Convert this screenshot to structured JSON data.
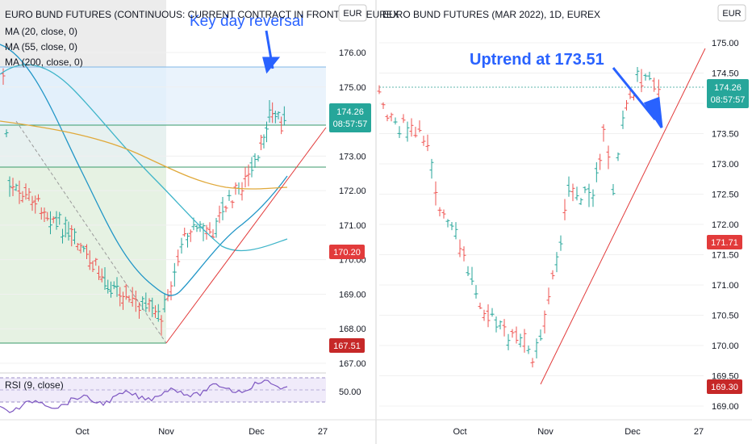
{
  "colors": {
    "up": "#26a69a",
    "down": "#ef5350",
    "ma20": "#2196c7",
    "ma55": "#3fb5c9",
    "ma200": "#e0a93a",
    "trend": "#e23b3b",
    "arrow": "#2962ff",
    "rsi": "#7e57c2",
    "badge_green": "#26a69a",
    "badge_red": "#e23b3b",
    "badge_darkred": "#c62828"
  },
  "left_panel": {
    "title": "EURO BUND FUTURES (CONTINUOUS: CURRENT CONTRACT IN FRONT), 1D, EUREX",
    "currency": "EUR",
    "legend": [
      "MA (20, close, 0)",
      "MA (55, close, 0)",
      "MA (200, close, 0)"
    ],
    "annotation": "Key day reversal",
    "rsi_label": "RSI (9, close)",
    "rsi_tick": "50.00",
    "price_badge": {
      "value": "174.26",
      "countdown": "08:57:57"
    },
    "level_badges": [
      "170.20",
      "167.51"
    ]
  },
  "right_panel": {
    "title": "EURO BUND FUTURES (MAR 2022), 1D, EUREX",
    "currency": "EUR",
    "annotation": "Uptrend at 173.51",
    "price_badge": {
      "value": "174.26",
      "countdown": "08:57:57"
    },
    "level_badges": [
      "171.71",
      "169.30"
    ]
  },
  "chart_data": [
    {
      "type": "bar",
      "title": "EURO BUND FUTURES (CONTINUOUS: CURRENT CONTRACT IN FRONT), 1D, EUREX",
      "y_ticks": [
        "176.00",
        "175.00",
        "174.00",
        "173.00",
        "172.00",
        "171.00",
        "170.00",
        "169.00",
        "168.00",
        "167.00"
      ],
      "x_ticks": [
        "Oct",
        "Nov",
        "Dec",
        "27"
      ],
      "ylim": [
        166.7,
        177.2
      ],
      "series": [
        {
          "name": "MA (20, close, 0)",
          "values": []
        },
        {
          "name": "MA (55, close, 0)",
          "values": []
        },
        {
          "name": "MA (200, close, 0)",
          "values": []
        }
      ]
    },
    {
      "type": "bar",
      "title": "EURO BUND FUTURES (MAR 2022), 1D, EUREX",
      "y_ticks": [
        "175.00",
        "174.50",
        "174.00",
        "173.50",
        "173.00",
        "172.50",
        "172.00",
        "171.50",
        "171.00",
        "170.50",
        "170.00",
        "169.50",
        "169.00"
      ],
      "x_ticks": [
        "Oct",
        "Nov",
        "Dec",
        "27"
      ],
      "ylim": [
        168.9,
        175.2
      ]
    }
  ]
}
